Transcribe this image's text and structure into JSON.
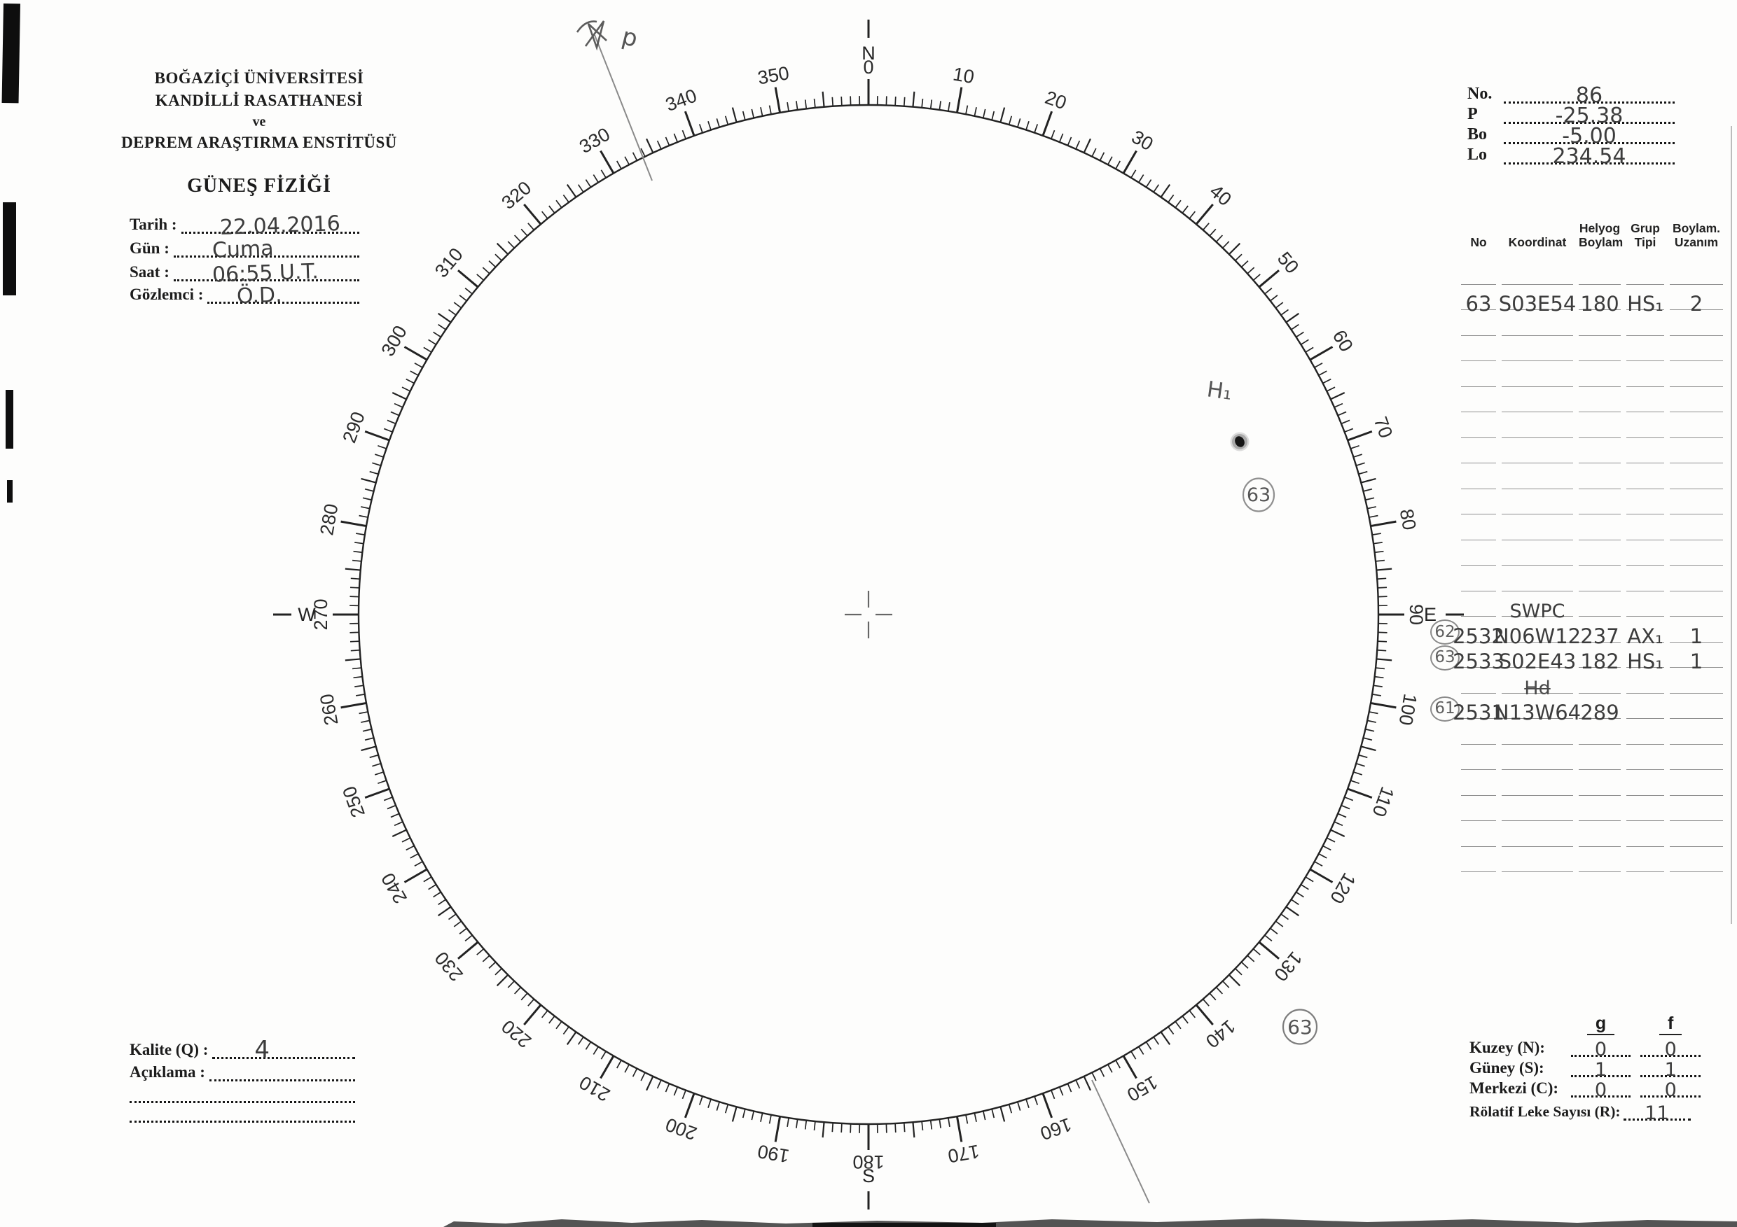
{
  "letterhead": {
    "line1": "BOĞAZİÇİ ÜNİVERSİTESİ",
    "line2": "KANDİLLİ RASATHANESİ",
    "line3": "ve",
    "line4": "DEPREM ARAŞTIRMA ENSTİTÜSÜ",
    "title": "GÜNEŞ FİZİĞİ"
  },
  "observation": {
    "date_label": "Tarih :",
    "date_value": "22.04.2016",
    "day_label": "Gün :",
    "day_value": "Cuma",
    "time_label": "Saat :",
    "time_value": "06:55 U.T.",
    "observer_label": "Gözlemci :",
    "observer_value": "Ö.D."
  },
  "ephemeris": {
    "no_label": "No.",
    "no_value": "86",
    "p_label": "P",
    "p_value": "-25.38",
    "bo_label": "Bo",
    "bo_value": "-5.00",
    "lo_label": "Lo",
    "lo_value": "234.54"
  },
  "group_table": {
    "col_no": "No",
    "col_koordinat": "Koordinat",
    "col_helyog_1": "Helyog",
    "col_helyog_2": "Boylam",
    "col_grup_1": "Grup",
    "col_grup_2": "Tipi",
    "col_uzanim_1": "Boylam.",
    "col_uzanim_2": "Uzanım",
    "row1": {
      "no": "63",
      "koordinat": "S03E54",
      "helyog": "180",
      "grup": "HS₁",
      "uzanim": "2"
    },
    "swpc_label": "SWPC",
    "row62": {
      "circle": "62",
      "no": "2532",
      "koordinat": "N06W12",
      "helyog": "237",
      "grup": "AX₁",
      "uzanim": "1"
    },
    "row63": {
      "circle": "63",
      "no": "2533",
      "koordinat": "S02E43",
      "helyog": "182",
      "grup": "HS₁",
      "uzanim": "1"
    },
    "row_hd": {
      "koordinat": "Hd"
    },
    "row61": {
      "circle": "61",
      "no": "2531",
      "koordinat": "N13W64",
      "helyog": "289"
    }
  },
  "disk": {
    "group_label": "H₁",
    "spot_circle_number": "63",
    "outside_circle_number": "63",
    "pencil_mark": "p"
  },
  "protractor": {
    "degree_labels": [
      "0",
      "10",
      "20",
      "30",
      "40",
      "50",
      "60",
      "70",
      "80",
      "90",
      "100",
      "110",
      "120",
      "130",
      "140",
      "150",
      "160",
      "170",
      "180",
      "190",
      "200",
      "210",
      "220",
      "230",
      "240",
      "250",
      "260",
      "270",
      "280",
      "290",
      "300",
      "310",
      "320",
      "330",
      "340",
      "350"
    ],
    "cardinals": [
      {
        "deg": 0,
        "label": "N"
      },
      {
        "deg": 90,
        "label": "E"
      },
      {
        "deg": 180,
        "label": "S"
      },
      {
        "deg": 270,
        "label": "W"
      }
    ]
  },
  "quality": {
    "q_label": "Kalite (Q) :",
    "q_value": "4",
    "note_label": "Açıklama :"
  },
  "counts": {
    "g_header": "g",
    "f_header": "f",
    "north_label": "Kuzey (N):",
    "north_g": "0",
    "north_f": "0",
    "south_label": "Güney (S):",
    "south_g": "1",
    "south_f": "1",
    "central_label": "Merkezi (C):",
    "central_g": "0",
    "central_f": "0",
    "relative_label": "Rölatif Leke Sayısı (R):",
    "relative_value": "11"
  }
}
